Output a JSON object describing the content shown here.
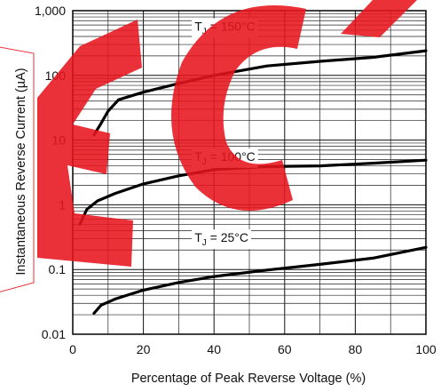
{
  "chart_data": {
    "type": "line",
    "title": "",
    "xlabel": "Percentage of Peak Reverse Voltage (%)",
    "ylabel": "Instantaneous Reverse Current (µA)",
    "x_scale": "linear",
    "y_scale": "log",
    "xlim": [
      0,
      100
    ],
    "ylim": [
      0.01,
      1000
    ],
    "x_ticks": [
      "0",
      "20",
      "40",
      "60",
      "80",
      "100"
    ],
    "y_ticks": [
      "0.01",
      "0.1",
      "1",
      "10",
      "100",
      "1,000"
    ],
    "grid": true,
    "series": [
      {
        "name": "T",
        "label_sub": "J",
        "label_rest": " = 150°C",
        "points": [
          [
            6,
            12
          ],
          [
            8,
            18
          ],
          [
            10,
            28
          ],
          [
            13,
            42
          ],
          [
            20,
            55
          ],
          [
            30,
            75
          ],
          [
            40,
            100
          ],
          [
            55,
            140
          ],
          [
            70,
            165
          ],
          [
            85,
            190
          ],
          [
            100,
            240
          ]
        ]
      },
      {
        "name": "T",
        "label_sub": "J",
        "label_rest": " = 100°C",
        "points": [
          [
            2,
            0.5
          ],
          [
            4,
            0.85
          ],
          [
            7,
            1.15
          ],
          [
            12,
            1.5
          ],
          [
            20,
            2.1
          ],
          [
            30,
            2.8
          ],
          [
            40,
            3.5
          ],
          [
            55,
            3.9
          ],
          [
            70,
            4.0
          ],
          [
            85,
            4.4
          ],
          [
            100,
            4.9
          ]
        ]
      },
      {
        "name": "T",
        "label_sub": "J",
        "label_rest": " = 25°C",
        "points": [
          [
            6,
            0.021
          ],
          [
            8,
            0.028
          ],
          [
            12,
            0.035
          ],
          [
            20,
            0.048
          ],
          [
            30,
            0.063
          ],
          [
            40,
            0.078
          ],
          [
            55,
            0.098
          ],
          [
            70,
            0.12
          ],
          [
            85,
            0.15
          ],
          [
            100,
            0.22
          ]
        ]
      }
    ]
  }
}
